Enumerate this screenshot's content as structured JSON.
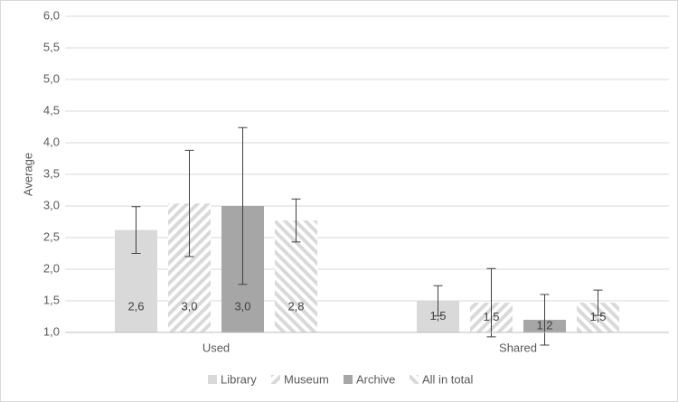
{
  "chart_data": {
    "type": "bar",
    "y_label": "Average",
    "categories": [
      "Used",
      "Shared"
    ],
    "series": [
      {
        "name": "Library",
        "color": "#d9d9d9",
        "pattern": "solid",
        "values": [
          2.62,
          1.5
        ],
        "value_labels": [
          "2,6",
          "1,5"
        ],
        "errors": [
          0.37,
          0.24
        ]
      },
      {
        "name": "Museum",
        "color": "#d9d9d9",
        "pattern": "hatch-up",
        "values": [
          3.04,
          1.47
        ],
        "value_labels": [
          "3,0",
          "1,5"
        ],
        "errors": [
          0.84,
          0.54
        ]
      },
      {
        "name": "Archive",
        "color": "#a6a6a6",
        "pattern": "solid",
        "values": [
          3.0,
          1.2
        ],
        "value_labels": [
          "3,0",
          "1,2"
        ],
        "errors": [
          1.24,
          0.4
        ]
      },
      {
        "name": "All in total",
        "color": "#d9d9d9",
        "pattern": "hatch-down",
        "values": [
          2.77,
          1.47
        ],
        "value_labels": [
          "2,8",
          "1,5"
        ],
        "errors": [
          0.34,
          0.2
        ]
      }
    ],
    "ylim": [
      1.0,
      6.0
    ],
    "yticks": [
      {
        "value": 1.0,
        "label": "1,0"
      },
      {
        "value": 1.5,
        "label": "1,5"
      },
      {
        "value": 2.0,
        "label": "2,0"
      },
      {
        "value": 2.5,
        "label": "2,5"
      },
      {
        "value": 3.0,
        "label": "3,0"
      },
      {
        "value": 3.5,
        "label": "3,5"
      },
      {
        "value": 4.0,
        "label": "4,0"
      },
      {
        "value": 4.5,
        "label": "4,5"
      },
      {
        "value": 5.0,
        "label": "5,0"
      },
      {
        "value": 5.5,
        "label": "5,5"
      },
      {
        "value": 6.0,
        "label": "6,0"
      }
    ],
    "grid": true,
    "legend": "bottom"
  }
}
